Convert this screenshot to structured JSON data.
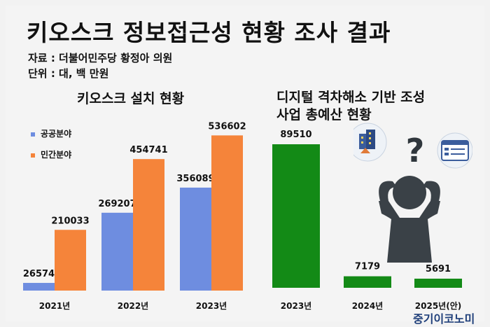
{
  "title": "키오스크 정보접근성 현황 조사 결과",
  "source": "자료 : 더불어민주당 황정아 의원",
  "unit": "단위 : 대, 백 만원",
  "brand": "중기이코노미",
  "colors": {
    "public": "#6e8de0",
    "private": "#f5843a",
    "budget": "#138a16",
    "person": "#3a4147"
  },
  "chart_data": [
    {
      "type": "bar",
      "title": "키오스크 설치 현황",
      "categories": [
        "2021년",
        "2022년",
        "2023년"
      ],
      "series": [
        {
          "name": "공공분야",
          "values": [
            26574,
            269207,
            356089
          ]
        },
        {
          "name": "민간분야",
          "values": [
            210033,
            454741,
            536602
          ]
        }
      ],
      "legend": "left",
      "grid": false
    },
    {
      "type": "bar",
      "title": "디지털 격차해소 기반 조성 사업 총예산 현황",
      "title_lines": [
        "디지털 격차해소 기반 조성",
        "사업 총예산 현황"
      ],
      "categories": [
        "2023년",
        "2024년",
        "2025년(안)"
      ],
      "values": [
        89510,
        7179,
        5691
      ],
      "grid": false
    }
  ]
}
